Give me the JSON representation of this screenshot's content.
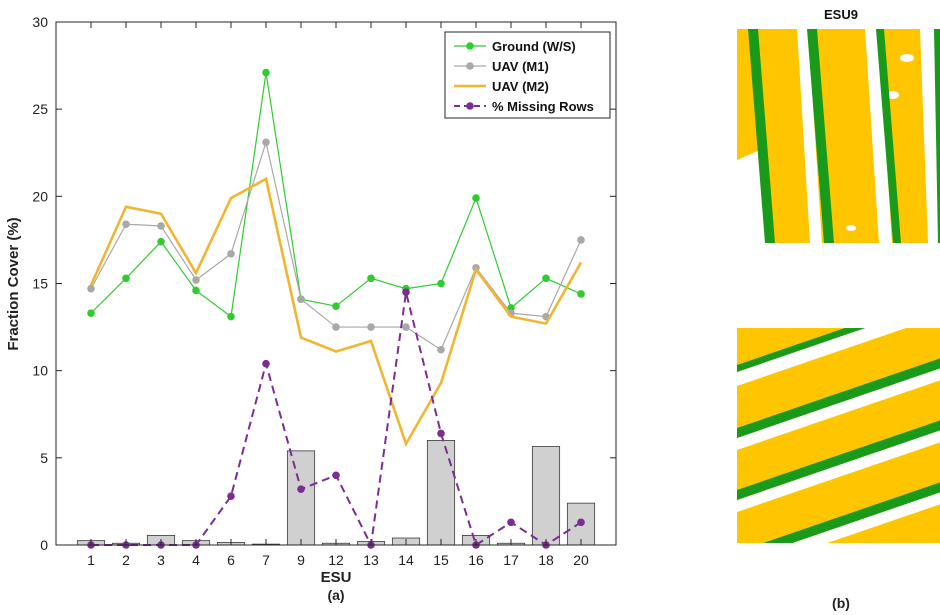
{
  "panel_a": {
    "caption": "(a)",
    "chart_data": {
      "type": "line",
      "categories": [
        "1",
        "2",
        "3",
        "4",
        "6",
        "7",
        "9",
        "12",
        "13",
        "14",
        "15",
        "16",
        "17",
        "18",
        "20"
      ],
      "xlabel": "ESU",
      "ylabel": "Fraction Cover (%)",
      "ylim": [
        0,
        30
      ],
      "yticks": [
        "0",
        "5",
        "10",
        "15",
        "20",
        "25",
        "30"
      ],
      "grid": false,
      "legend_placement": "top-right",
      "series": [
        {
          "name": "Ground (W/S)",
          "kind": "line-marker",
          "color": "#2ecc2e",
          "values": [
            13.3,
            15.3,
            17.4,
            14.6,
            13.1,
            27.1,
            14.1,
            13.7,
            15.3,
            14.7,
            15.0,
            19.9,
            13.6,
            15.3,
            14.4
          ]
        },
        {
          "name": "UAV (M1)",
          "kind": "line-marker",
          "color": "#a8a8a8",
          "values": [
            14.7,
            18.4,
            18.3,
            15.2,
            16.7,
            23.1,
            14.1,
            12.5,
            12.5,
            12.5,
            11.2,
            15.9,
            13.3,
            13.1,
            17.5
          ]
        },
        {
          "name": "UAV (M2)",
          "kind": "line",
          "color": "#f2b530",
          "values": [
            14.9,
            19.4,
            19.0,
            15.6,
            19.9,
            21.0,
            11.9,
            11.1,
            11.7,
            5.8,
            9.3,
            15.8,
            13.1,
            12.7,
            16.2
          ]
        },
        {
          "name": "% Missing Rows",
          "kind": "dashed-marker",
          "color": "#7b2d92",
          "values": [
            0.0,
            0.0,
            0.0,
            0.0,
            2.8,
            10.4,
            3.2,
            4.0,
            0.0,
            14.5,
            6.4,
            0.0,
            1.3,
            0.0,
            1.3
          ]
        },
        {
          "name": "",
          "kind": "bar",
          "color": "#d0d0d0",
          "values": [
            0.25,
            0.1,
            0.55,
            0.25,
            0.15,
            0.05,
            5.4,
            0.1,
            0.2,
            0.4,
            6.0,
            0.55,
            0.1,
            5.65,
            2.4
          ]
        }
      ]
    }
  },
  "panel_b": {
    "caption": "(b)",
    "top_image_title": "ESU9",
    "colors": {
      "canopy": "#ffc600",
      "green": "#1a9a1a",
      "white": "#ffffff"
    }
  }
}
